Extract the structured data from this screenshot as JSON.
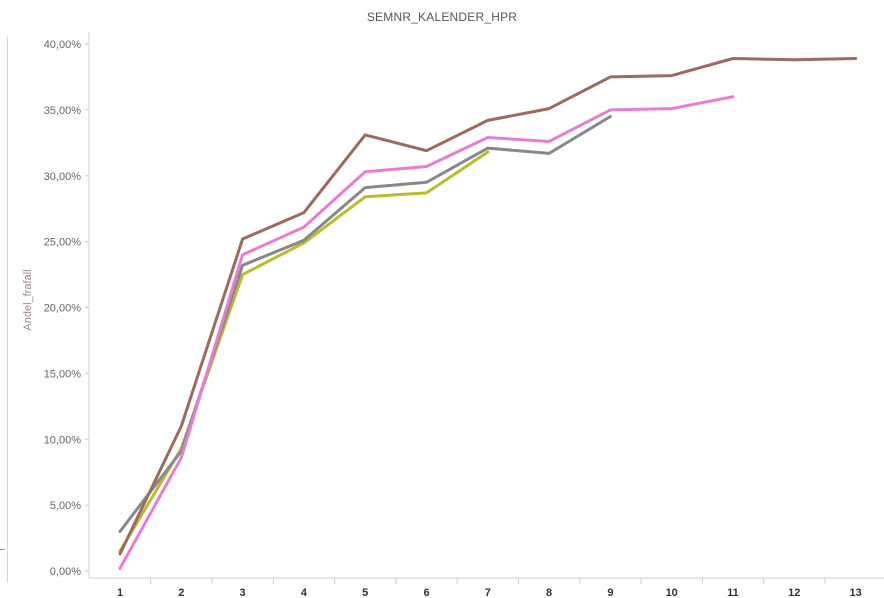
{
  "chart_data": {
    "type": "line",
    "title": "SEMNR_KALENDER_HPR",
    "xlabel": "",
    "ylabel": "Andel_frafall",
    "ylim": [
      0,
      0.4
    ],
    "x": [
      1,
      2,
      3,
      4,
      5,
      6,
      7,
      8,
      9,
      10,
      11,
      12,
      13
    ],
    "y_ticks": [
      {
        "value": 0.0,
        "label": "0,00%"
      },
      {
        "value": 0.05,
        "label": "5,00%"
      },
      {
        "value": 0.1,
        "label": "10,00%"
      },
      {
        "value": 0.15,
        "label": "15,00%"
      },
      {
        "value": 0.2,
        "label": "20,00%"
      },
      {
        "value": 0.25,
        "label": "25,00%"
      },
      {
        "value": 0.3,
        "label": "30,00%"
      },
      {
        "value": 0.35,
        "label": "35,00%"
      },
      {
        "value": 0.4,
        "label": "40,00%"
      }
    ],
    "x_ticks": [
      "1",
      "2",
      "3",
      "4",
      "5",
      "6",
      "7",
      "8",
      "9",
      "10",
      "11",
      "12",
      "13"
    ],
    "grid": false,
    "series": [
      {
        "color": "#9c6b5e",
        "values": [
          0.013,
          0.11,
          0.252,
          0.272,
          0.331,
          0.319,
          0.342,
          0.351,
          0.375,
          0.376,
          0.389,
          0.388,
          0.389
        ]
      },
      {
        "color": "#e87dd2",
        "values": [
          0.002,
          0.086,
          0.24,
          0.261,
          0.303,
          0.307,
          0.329,
          0.326,
          0.35,
          0.351,
          0.36,
          null,
          null
        ]
      },
      {
        "color": "#888888",
        "values": [
          0.03,
          0.091,
          0.232,
          0.251,
          0.291,
          0.295,
          0.321,
          0.317,
          0.345,
          null,
          null,
          null,
          null
        ]
      },
      {
        "color": "#b9bd2b",
        "values": [
          0.015,
          0.093,
          0.225,
          0.249,
          0.284,
          0.287,
          0.318,
          null,
          null,
          null,
          null,
          null,
          null
        ]
      }
    ]
  }
}
